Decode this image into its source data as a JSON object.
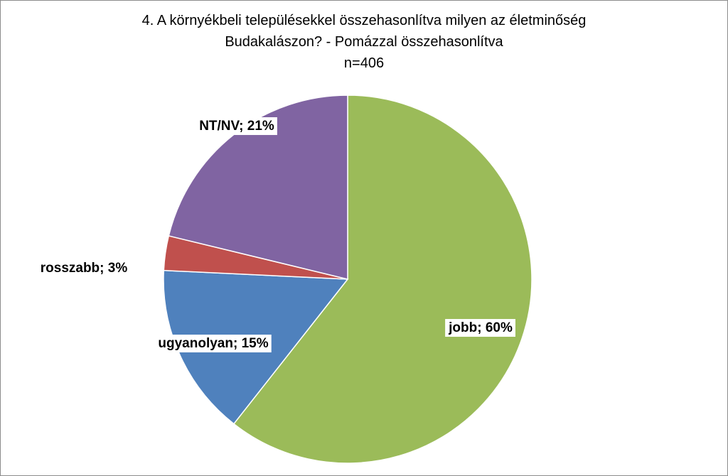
{
  "chart_data": {
    "type": "pie",
    "title_lines": [
      "4. A környékbeli településekkel összehasonlítva milyen az életminőség",
      "Budakalászon? - Pomázzal összehasonlítva",
      "n=406"
    ],
    "slices": [
      {
        "label": "jobb; 60%",
        "value": 60,
        "color": "#9bbb59"
      },
      {
        "label": "ugyanolyan; 15%",
        "value": 15,
        "color": "#4f81bd"
      },
      {
        "label": "rosszabb; 3%",
        "value": 3,
        "color": "#c0504d"
      },
      {
        "label": "NT/NV; 21%",
        "value": 21,
        "color": "#8064a2"
      }
    ]
  }
}
